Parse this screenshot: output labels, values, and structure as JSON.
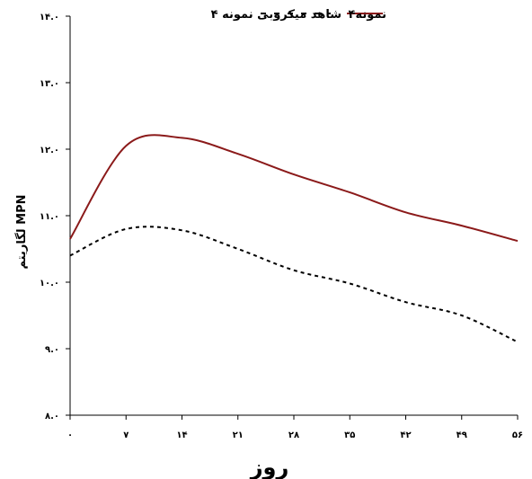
{
  "chart_data": {
    "type": "line",
    "xlabel": "روز",
    "ylabel": "لگاریتم MPN",
    "x": [
      0,
      7,
      14,
      21,
      28,
      35,
      42,
      49,
      56
    ],
    "x_tick_labels": [
      "۰",
      "۷",
      "۱۴",
      "۲۱",
      "۲۸",
      "۳۵",
      "۴۲",
      "۴۹",
      "۵۶"
    ],
    "xlim": [
      0,
      56
    ],
    "ylim": [
      8,
      14
    ],
    "y_ticks": [
      8,
      9,
      10,
      11,
      12,
      13,
      14
    ],
    "y_tick_labels": [
      "۸.۰",
      "۹.۰",
      "۱۰.۰",
      "۱۱.۰",
      "۱۲.۰",
      "۱۳.۰",
      "۱۴.۰"
    ],
    "grid": false,
    "legend_position": "top",
    "series": [
      {
        "name": "نمونه۴",
        "style": "solid",
        "color": "#8b1a1a",
        "values": [
          10.65,
          12.05,
          12.17,
          11.93,
          11.62,
          11.35,
          11.05,
          10.85,
          10.62
        ]
      },
      {
        "name": "شاهد میکروبی نمونه ۴",
        "style": "dashed",
        "color": "#000000",
        "values": [
          10.4,
          10.8,
          10.78,
          10.5,
          10.18,
          9.98,
          9.7,
          9.5,
          9.1
        ]
      }
    ]
  }
}
